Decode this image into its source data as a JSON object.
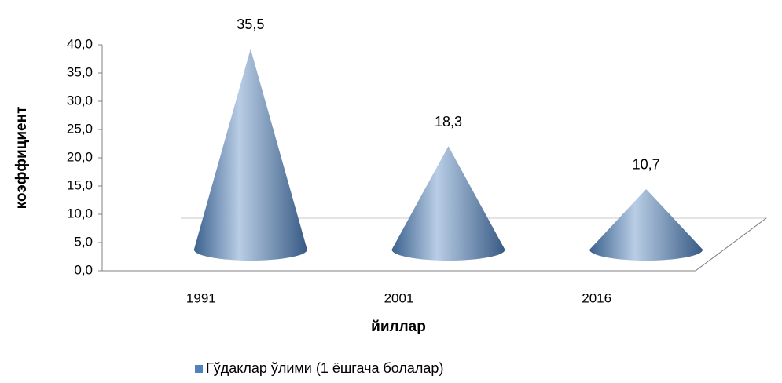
{
  "chart_data": {
    "type": "cone",
    "categories": [
      "1991",
      "2001",
      "2016"
    ],
    "series": [
      {
        "name": "Гўдаклар ўлими (1 ёшгача болалар)",
        "color": "#4f81bd",
        "values": [
          35.5,
          18.3,
          10.7
        ],
        "value_labels": [
          "35,5",
          "18,3",
          "10,7"
        ]
      }
    ],
    "ylim": [
      0,
      40
    ],
    "yticks": [
      {
        "value": 0,
        "label": "0,0"
      },
      {
        "value": 5,
        "label": "5,0"
      },
      {
        "value": 10,
        "label": "10,0"
      },
      {
        "value": 15,
        "label": "15,0"
      },
      {
        "value": 20,
        "label": "20,0"
      },
      {
        "value": 25,
        "label": "25,0"
      },
      {
        "value": 30,
        "label": "30,0"
      },
      {
        "value": 35,
        "label": "35,0"
      },
      {
        "value": 40,
        "label": "40,0"
      }
    ],
    "y_label": "коэффициент",
    "x_label": "йиллар",
    "legend": "bottom"
  }
}
